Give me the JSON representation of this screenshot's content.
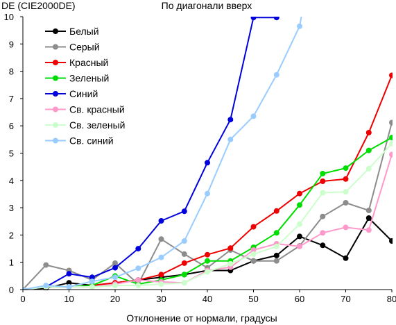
{
  "chart_data": {
    "type": "line",
    "title": "По диагонали вверх",
    "ylabel": "DE (CIE2000DE)",
    "xlabel": "Отклонение от нормали, градусы",
    "xlim": [
      0,
      80
    ],
    "ylim": [
      0,
      10
    ],
    "xticks": [
      0,
      10,
      20,
      30,
      40,
      50,
      60,
      70,
      80
    ],
    "yticks": [
      0,
      1,
      2,
      3,
      4,
      5,
      6,
      7,
      8,
      9,
      10
    ],
    "x": [
      0,
      5,
      10,
      15,
      20,
      25,
      30,
      35,
      40,
      45,
      50,
      55,
      60,
      65,
      70,
      75,
      80
    ],
    "grid": false,
    "legend_position": "top-left",
    "series": [
      {
        "name": "Белый",
        "color": "#000000",
        "values": [
          0.0,
          0.05,
          0.25,
          0.15,
          0.25,
          0.35,
          0.45,
          0.55,
          0.7,
          0.7,
          1.05,
          1.25,
          1.95,
          1.62,
          1.15,
          2.62,
          1.78
        ]
      },
      {
        "name": "Серый",
        "color": "#8c8c8c",
        "values": [
          0.0,
          0.9,
          0.7,
          0.35,
          0.97,
          0.2,
          1.85,
          1.3,
          0.8,
          1.45,
          1.05,
          1.05,
          1.6,
          2.68,
          3.18,
          2.9,
          6.12
        ]
      },
      {
        "name": "Красный",
        "color": "#ee0000",
        "values": [
          0.0,
          0.1,
          0.1,
          0.15,
          0.25,
          0.35,
          0.55,
          0.97,
          1.28,
          1.52,
          2.3,
          2.88,
          3.52,
          3.97,
          4.05,
          5.75,
          7.85
        ]
      },
      {
        "name": "Зеленый",
        "color": "#00dd00",
        "values": [
          0.0,
          0.1,
          0.1,
          0.15,
          0.5,
          0.2,
          0.35,
          0.55,
          1.05,
          1.05,
          1.55,
          2.08,
          3.1,
          4.25,
          4.45,
          5.1,
          5.57
        ]
      },
      {
        "name": "Синий",
        "color": "#0000dd",
        "values": [
          0.0,
          0.1,
          0.58,
          0.45,
          0.8,
          1.5,
          2.52,
          2.87,
          4.65,
          6.23,
          9.97,
          9.97,
          null,
          null,
          null,
          null,
          null
        ]
      },
      {
        "name": "Св. красный",
        "color": "#ff99cc",
        "values": [
          0.0,
          0.1,
          0.1,
          0.1,
          0.2,
          0.35,
          0.28,
          0.25,
          0.7,
          0.82,
          1.45,
          1.68,
          1.58,
          2.08,
          2.28,
          2.18,
          4.95
        ]
      },
      {
        "name": "Св. зеленый",
        "color": "#ccffcc",
        "values": [
          0.0,
          0.1,
          0.1,
          0.1,
          0.15,
          0.15,
          0.2,
          0.25,
          0.65,
          0.95,
          1.3,
          1.58,
          2.4,
          3.55,
          3.58,
          4.43,
          5.35
        ]
      },
      {
        "name": "Св. синий",
        "color": "#99ccff",
        "values": [
          0.0,
          0.15,
          0.1,
          0.3,
          0.45,
          0.78,
          1.18,
          1.78,
          3.52,
          5.5,
          6.35,
          7.87,
          9.65,
          null,
          null,
          null,
          null
        ]
      }
    ],
    "overflow_lines": [
      {
        "series": "Св. синий",
        "from": [
          60,
          9.65
        ],
        "to": [
          61.5,
          11
        ]
      }
    ]
  }
}
